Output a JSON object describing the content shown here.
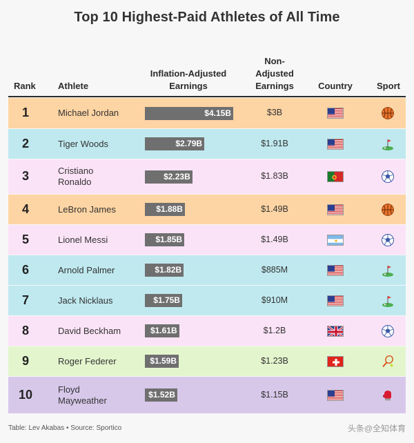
{
  "title": "Top 10 Highest-Paid Athletes of All Time",
  "headers": {
    "rank": "Rank",
    "athlete": "Athlete",
    "inflation": [
      "Inflation-Adjusted",
      "Earnings"
    ],
    "nonadjusted": [
      "Non-",
      "Adjusted",
      "Earnings"
    ],
    "country": "Country",
    "sport": "Sport"
  },
  "colors": {
    "orange": "#fdd4a3",
    "cyan": "#bfe9ef",
    "pink": "#fbe3f7",
    "green": "#e3f5cd",
    "purple": "#d7c8ea",
    "bar": "#6f6f6f"
  },
  "chart_data": {
    "type": "table",
    "max_value": 4.15,
    "rows": [
      {
        "rank": "1",
        "athlete": [
          "Michael Jordan"
        ],
        "inflation_value": 4.15,
        "inflation_label": "$4.15B",
        "nonadjusted": "$3B",
        "country": "usa",
        "sport": "basketball",
        "bg": "orange"
      },
      {
        "rank": "2",
        "athlete": [
          "Tiger Woods"
        ],
        "inflation_value": 2.79,
        "inflation_label": "$2.79B",
        "nonadjusted": "$1.91B",
        "country": "usa",
        "sport": "golf",
        "bg": "cyan"
      },
      {
        "rank": "3",
        "athlete": [
          "Cristiano",
          "Ronaldo"
        ],
        "inflation_value": 2.23,
        "inflation_label": "$2.23B",
        "nonadjusted": "$1.83B",
        "country": "portugal",
        "sport": "soccer",
        "bg": "pink"
      },
      {
        "rank": "4",
        "athlete": [
          "LeBron James"
        ],
        "inflation_value": 1.88,
        "inflation_label": "$1.88B",
        "nonadjusted": "$1.49B",
        "country": "usa",
        "sport": "basketball",
        "bg": "orange"
      },
      {
        "rank": "5",
        "athlete": [
          "Lionel Messi"
        ],
        "inflation_value": 1.85,
        "inflation_label": "$1.85B",
        "nonadjusted": "$1.49B",
        "country": "argentina",
        "sport": "soccer",
        "bg": "pink"
      },
      {
        "rank": "6",
        "athlete": [
          "Arnold Palmer"
        ],
        "inflation_value": 1.82,
        "inflation_label": "$1.82B",
        "nonadjusted": "$885M",
        "country": "usa",
        "sport": "golf",
        "bg": "cyan"
      },
      {
        "rank": "7",
        "athlete": [
          "Jack Nicklaus"
        ],
        "inflation_value": 1.75,
        "inflation_label": "$1.75B",
        "nonadjusted": "$910M",
        "country": "usa",
        "sport": "golf",
        "bg": "cyan"
      },
      {
        "rank": "8",
        "athlete": [
          "David Beckham"
        ],
        "inflation_value": 1.61,
        "inflation_label": "$1.61B",
        "nonadjusted": "$1.2B",
        "country": "uk",
        "sport": "soccer",
        "bg": "pink"
      },
      {
        "rank": "9",
        "athlete": [
          "Roger Federer"
        ],
        "inflation_value": 1.59,
        "inflation_label": "$1.59B",
        "nonadjusted": "$1.23B",
        "country": "switzerland",
        "sport": "tennis",
        "bg": "green"
      },
      {
        "rank": "10",
        "athlete": [
          "Floyd",
          "Mayweather"
        ],
        "inflation_value": 1.52,
        "inflation_label": "$1.52B",
        "nonadjusted": "$1.15B",
        "country": "usa",
        "sport": "boxing",
        "bg": "purple"
      }
    ]
  },
  "source": "Table: Lev Akabas • Source: Sportico",
  "watermark": "头条@全知体育"
}
